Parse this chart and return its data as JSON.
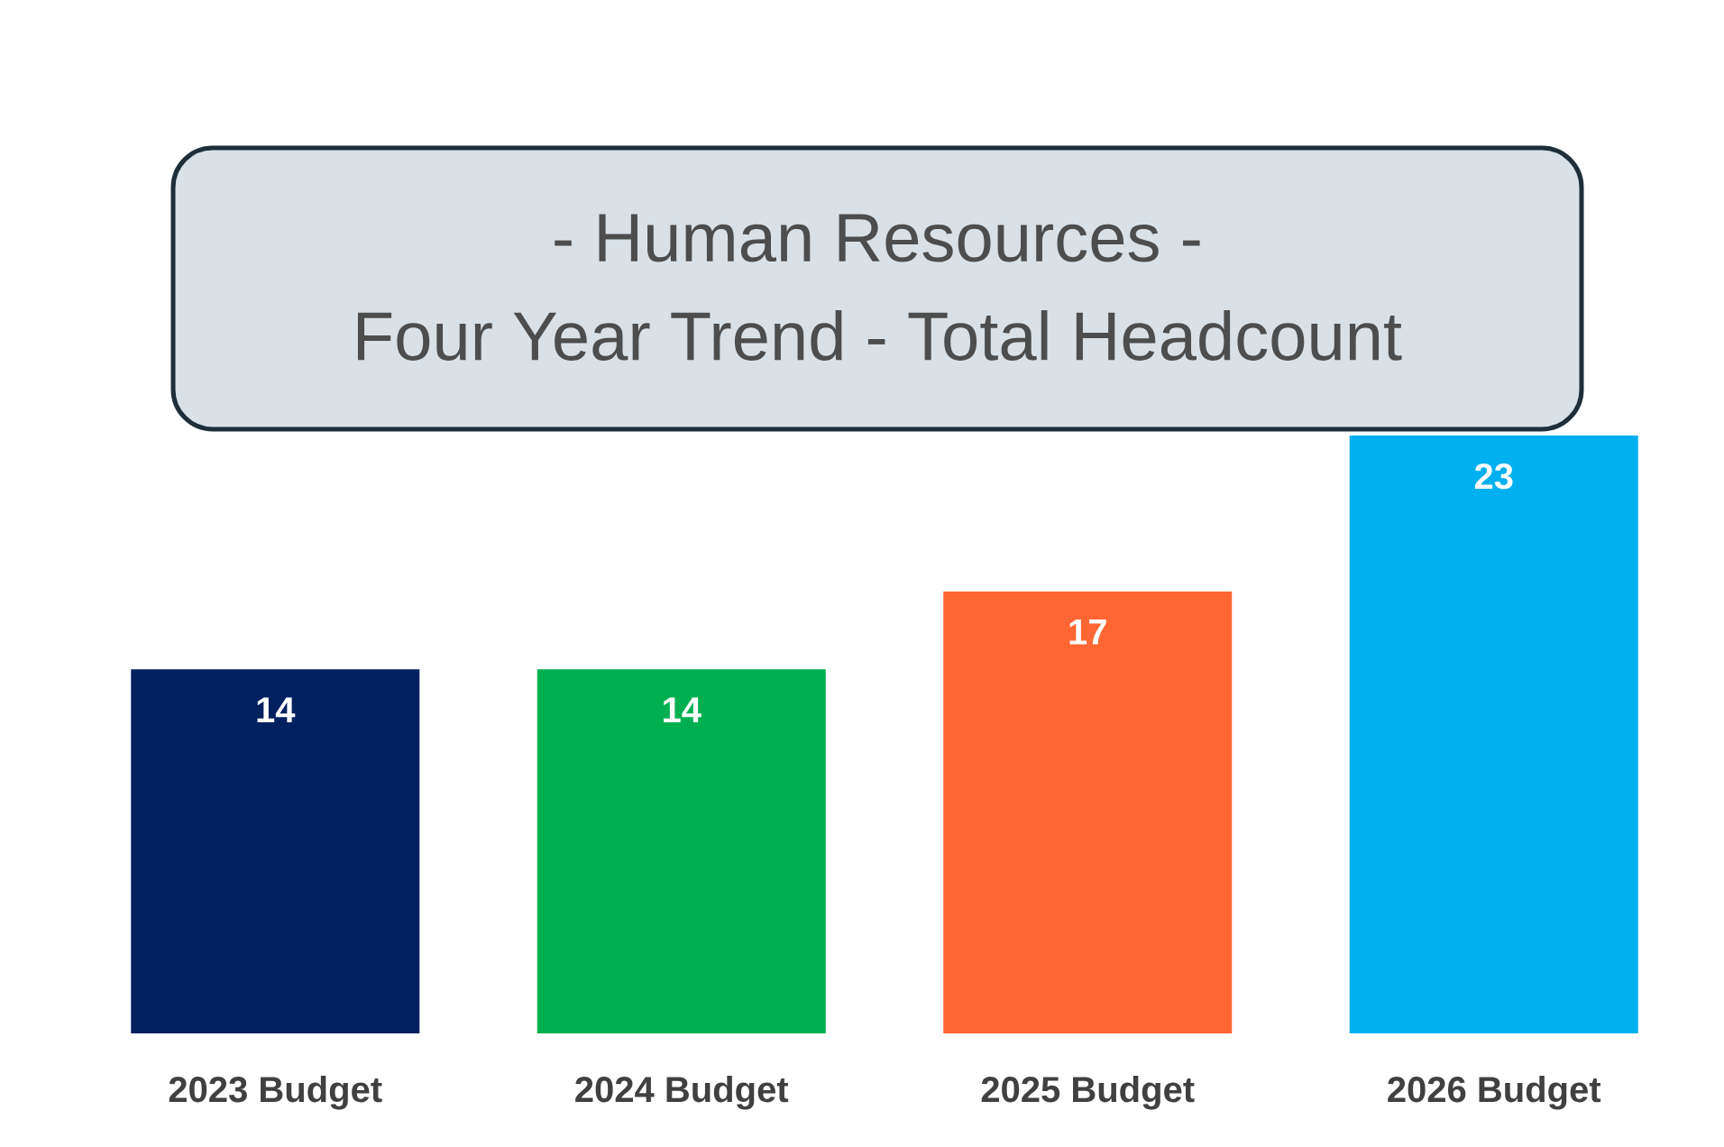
{
  "chart_data": {
    "type": "bar",
    "title": "- Human Resources -",
    "subtitle": "Four Year Trend - Total Headcount",
    "categories": [
      "2023 Budget",
      "2024 Budget",
      "2025 Budget",
      "2026 Budget"
    ],
    "values": [
      14,
      14,
      17,
      23
    ],
    "colors": [
      "#002060",
      "#00b050",
      "#ff6633",
      "#00b0f0"
    ],
    "data_labels": true
  }
}
